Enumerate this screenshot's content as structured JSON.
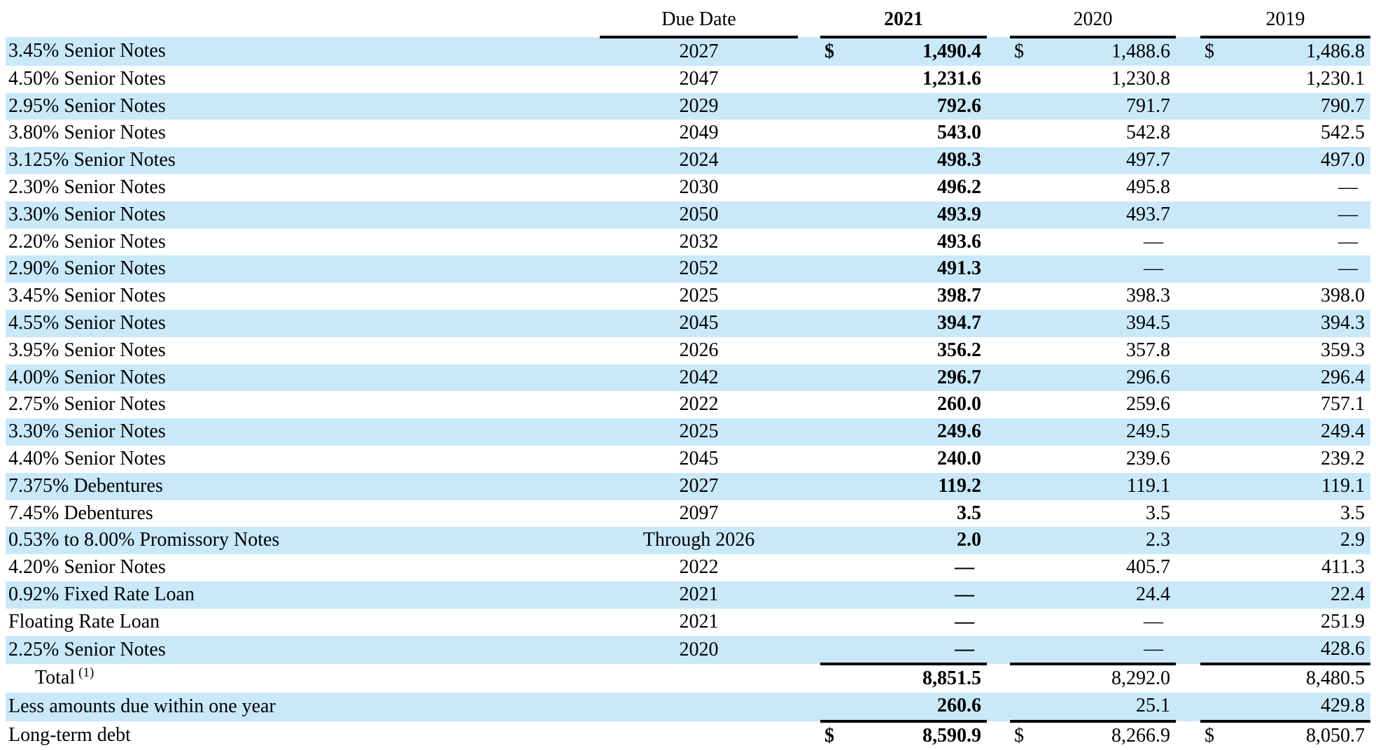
{
  "colors": {
    "row_highlight": "#C9E9FB",
    "rule": "#000000",
    "text": "#000000",
    "background": "#FFFFFF"
  },
  "table": {
    "currency_symbol": "$",
    "dash": "—",
    "columns": {
      "due_date": "Due Date",
      "y2021": "2021",
      "y2020": "2020",
      "y2019": "2019"
    },
    "rows": [
      {
        "label": "3.45% Senior Notes",
        "due": "2027",
        "v2021": "1,490.4",
        "v2020": "1,488.6",
        "v2019": "1,486.8",
        "dollar": true
      },
      {
        "label": "4.50% Senior Notes",
        "due": "2047",
        "v2021": "1,231.6",
        "v2020": "1,230.8",
        "v2019": "1,230.1"
      },
      {
        "label": "2.95% Senior Notes",
        "due": "2029",
        "v2021": "792.6",
        "v2020": "791.7",
        "v2019": "790.7"
      },
      {
        "label": "3.80% Senior Notes",
        "due": "2049",
        "v2021": "543.0",
        "v2020": "542.8",
        "v2019": "542.5"
      },
      {
        "label": "3.125% Senior Notes",
        "due": "2024",
        "v2021": "498.3",
        "v2020": "497.7",
        "v2019": "497.0"
      },
      {
        "label": "2.30% Senior Notes",
        "due": "2030",
        "v2021": "496.2",
        "v2020": "495.8",
        "v2019": "—"
      },
      {
        "label": "3.30% Senior Notes",
        "due": "2050",
        "v2021": "493.9",
        "v2020": "493.7",
        "v2019": "—"
      },
      {
        "label": "2.20% Senior Notes",
        "due": "2032",
        "v2021": "493.6",
        "v2020": "—",
        "v2019": "—"
      },
      {
        "label": "2.90% Senior Notes",
        "due": "2052",
        "v2021": "491.3",
        "v2020": "—",
        "v2019": "—"
      },
      {
        "label": "3.45% Senior Notes",
        "due": "2025",
        "v2021": "398.7",
        "v2020": "398.3",
        "v2019": "398.0"
      },
      {
        "label": "4.55% Senior Notes",
        "due": "2045",
        "v2021": "394.7",
        "v2020": "394.5",
        "v2019": "394.3"
      },
      {
        "label": "3.95% Senior Notes",
        "due": "2026",
        "v2021": "356.2",
        "v2020": "357.8",
        "v2019": "359.3"
      },
      {
        "label": "4.00% Senior Notes",
        "due": "2042",
        "v2021": "296.7",
        "v2020": "296.6",
        "v2019": "296.4"
      },
      {
        "label": "2.75% Senior Notes",
        "due": "2022",
        "v2021": "260.0",
        "v2020": "259.6",
        "v2019": "757.1"
      },
      {
        "label": "3.30% Senior Notes",
        "due": "2025",
        "v2021": "249.6",
        "v2020": "249.5",
        "v2019": "249.4"
      },
      {
        "label": "4.40% Senior Notes",
        "due": "2045",
        "v2021": "240.0",
        "v2020": "239.6",
        "v2019": "239.2"
      },
      {
        "label": "7.375% Debentures",
        "due": "2027",
        "v2021": "119.2",
        "v2020": "119.1",
        "v2019": "119.1"
      },
      {
        "label": "7.45% Debentures",
        "due": "2097",
        "v2021": "3.5",
        "v2020": "3.5",
        "v2019": "3.5"
      },
      {
        "label": "0.53% to 8.00% Promissory Notes",
        "due": "Through 2026",
        "v2021": "2.0",
        "v2020": "2.3",
        "v2019": "2.9"
      },
      {
        "label": "4.20% Senior Notes",
        "due": "2022",
        "v2021": "—",
        "v2020": "405.7",
        "v2019": "411.3"
      },
      {
        "label": "0.92% Fixed Rate Loan",
        "due": "2021",
        "v2021": "—",
        "v2020": "24.4",
        "v2019": "22.4"
      },
      {
        "label": "Floating Rate Loan",
        "due": "2021",
        "v2021": "—",
        "v2020": "—",
        "v2019": "251.9"
      },
      {
        "label": "2.25% Senior Notes",
        "due": "2020",
        "v2021": "—",
        "v2020": "—",
        "v2019": "428.6"
      },
      {
        "label": "Total",
        "superscript": "(1)",
        "indent": true,
        "due": "",
        "v2021": "8,851.5",
        "v2020": "8,292.0",
        "v2019": "8,480.5",
        "rule_above": true
      },
      {
        "label": "Less amounts due within one year",
        "due": "",
        "v2021": "260.6",
        "v2020": "25.1",
        "v2019": "429.8"
      },
      {
        "label": "Long-term debt",
        "due": "",
        "v2021": "8,590.9",
        "v2020": "8,266.9",
        "v2019": "8,050.7",
        "dollar": true,
        "rule_above": true
      }
    ]
  }
}
